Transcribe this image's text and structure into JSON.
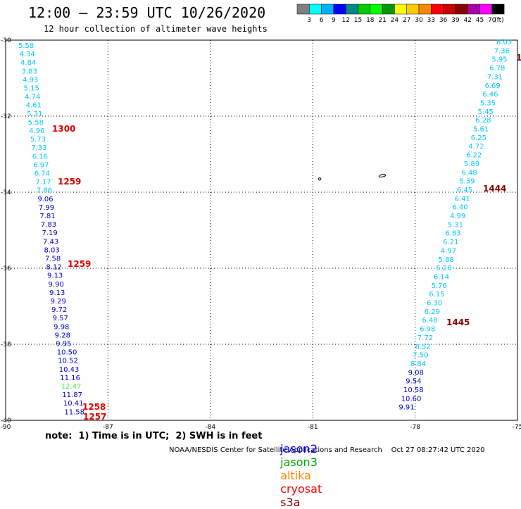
{
  "header": {
    "title": "12:00 – 23:59 UTC 10/26/2020",
    "subtitle": "12 hour collection of altimeter wave heights"
  },
  "legend": {
    "colors": [
      "#808080",
      "#00ffff",
      "#00b0ff",
      "#0000ff",
      "#008888",
      "#00cc00",
      "#00ff00",
      "#009900",
      "#ffff00",
      "#ffcc00",
      "#ff8800",
      "#ff0000",
      "#cc0000",
      "#880000",
      "#aa00aa",
      "#ff00ff",
      "#000000"
    ],
    "labels": [
      "3",
      "6",
      "9",
      "12",
      "15",
      "18",
      "21",
      "24",
      "27",
      "30",
      "33",
      "36",
      "39",
      "42",
      "45",
      "70"
    ],
    "unit": "(ft)"
  },
  "footer": {
    "note": "note:  1) Time is in UTC;  2) SWH is in feet",
    "credit": "NOAA/NESDIS Center for Satellite Applications and Research    Oct 27 08:27:42 UTC 2020",
    "satellites": [
      {
        "name": "jason2",
        "color": "#0000ff"
      },
      {
        "name": "jason3",
        "color": "#00aa00"
      },
      {
        "name": "altika",
        "color": "#ff8800"
      },
      {
        "name": "cryosat",
        "color": "#ff0000"
      },
      {
        "name": "s3a",
        "color": "#880000"
      }
    ]
  },
  "chart_data": {
    "type": "scatter",
    "xlim": [
      -90,
      -75
    ],
    "ylim": [
      -40,
      -30
    ],
    "x_ticks": [
      "-90",
      "-87",
      "-84",
      "-81",
      "-78",
      "-75"
    ],
    "y_ticks": [
      "-30",
      "-32",
      "-34",
      "-36",
      "-38",
      "-40"
    ],
    "grid": true,
    "track_west": {
      "values": [
        "5.58",
        "4.34",
        "4.84",
        "3.83",
        "4.93",
        "5.15",
        "4.74",
        "4.61",
        "5.31",
        "5.58",
        "4.96",
        "5.73",
        "7.33",
        "6.16",
        "6.97",
        "6.74",
        "7.17",
        "7.86",
        "9.06",
        "7.99",
        "7.81",
        "7.83",
        "7.19",
        "7.43",
        "8.03",
        "7.58",
        "8.12",
        "9.13",
        "9.90",
        "9.13",
        "9.29",
        "9.72",
        "9.57",
        "9.98",
        "9.28",
        "9.95",
        "10.50",
        "10.52",
        "10.43",
        "11.16",
        "12.47",
        "11.87",
        "10.41",
        "11.58"
      ],
      "colors": [
        "#00c8ff",
        "#00c8ff",
        "#00c8ff",
        "#00c8ff",
        "#00c8ff",
        "#00c8ff",
        "#00c8ff",
        "#00c8ff",
        "#00c8ff",
        "#00c8ff",
        "#00c8ff",
        "#00c8ff",
        "#00c8ff",
        "#00c8ff",
        "#00c8ff",
        "#00c8ff",
        "#00c8ff",
        "#00c8ff",
        "#0000cc",
        "#0000cc",
        "#0000cc",
        "#0000cc",
        "#0000cc",
        "#0000cc",
        "#0000cc",
        "#0000cc",
        "#0000cc",
        "#0000cc",
        "#0000cc",
        "#0000cc",
        "#0000cc",
        "#0000cc",
        "#0000cc",
        "#0000cc",
        "#0000cc",
        "#0000cc",
        "#0000cc",
        "#0000cc",
        "#0000cc",
        "#0000cc",
        "#44ee44",
        "#0000cc",
        "#0000cc",
        "#0000cc"
      ]
    },
    "track_east": {
      "values": [
        "8.03",
        "7.36",
        "5.95",
        "6.78",
        "7.31",
        "6.69",
        "6.46",
        "5.35",
        "5.45",
        "6.28",
        "5.61",
        "6.25",
        "4.72",
        "6.22",
        "5.89",
        "6.48",
        "5.39",
        "6.45",
        "6.41",
        "6.40",
        "4.99",
        "5.31",
        "6.83",
        "6.21",
        "4.97",
        "5.88",
        "6.26",
        "6.14",
        "5.76",
        "6.15",
        "6.30",
        "6.29",
        "6.48",
        "6.98",
        "7.72",
        "8.52",
        "7.50",
        "8.84",
        "9.08",
        "9.54",
        "10.58",
        "10.60",
        "9.91"
      ],
      "color": "#00c8ff",
      "blue_from": 38
    },
    "time_labels": [
      {
        "text": "1300",
        "color": "#e00000"
      },
      {
        "text": "1259",
        "color": "#e00000"
      },
      {
        "text": "1259",
        "color": "#e00000"
      },
      {
        "text": "1258",
        "color": "#e00000"
      },
      {
        "text": "1257",
        "color": "#e00000"
      },
      {
        "text": "1444",
        "color": "#880000"
      },
      {
        "text": "1445",
        "color": "#880000"
      },
      {
        "text": "1",
        "color": "#880000"
      }
    ]
  }
}
